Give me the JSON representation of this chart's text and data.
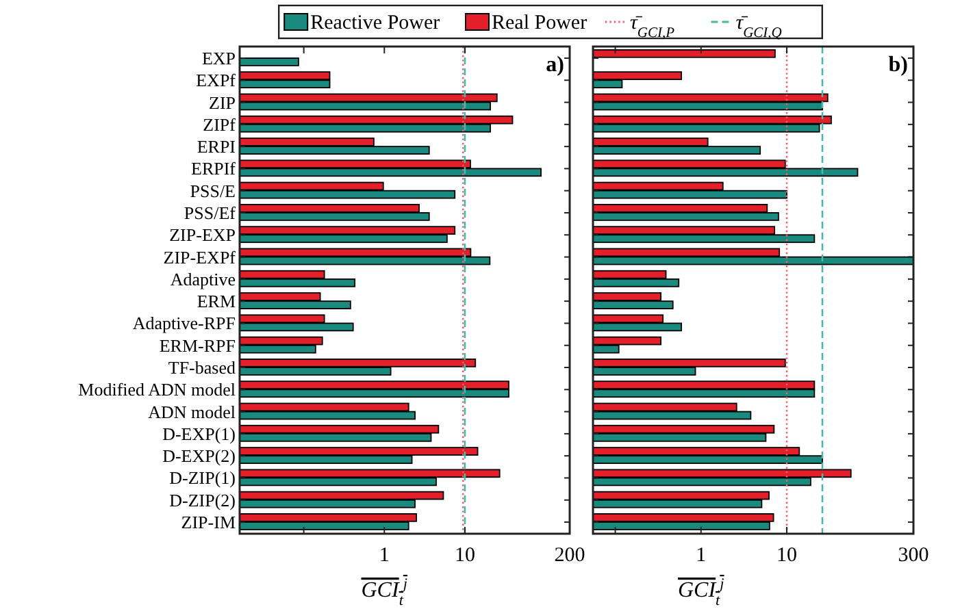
{
  "chart_data": [
    {
      "type": "bar",
      "orientation": "horizontal",
      "log": "x",
      "xlabel": "GCI$_{t}$$^{j}$",
      "legend": "top",
      "annotations": [
        "a)"
      ],
      "categories": [
        "EXP",
        "EXPf",
        "ZIP",
        "ZIPf",
        "ERPI",
        "ERPIf",
        "PSS/E",
        "PSS/Ef",
        "ZIP-EXP",
        "ZIP-EXPf",
        "Adaptive",
        "ERM",
        "Adaptive-RPF",
        "ERM-RPF",
        "TF-based",
        "Modified ADN model",
        "ADN model",
        "D-EXP(1)",
        "D-EXP(2)",
        "D-ZIP(1)",
        "D-ZIP(2)",
        "ZIP-IM"
      ],
      "series": [
        {
          "name": "Reactive Power",
          "color": "#1b8a7e",
          "values": [
            0.086,
            0.21,
            20.7,
            20.7,
            3.6,
            88,
            7.5,
            3.6,
            6.0,
            20.4,
            0.43,
            0.38,
            0.41,
            0.14,
            1.2,
            35,
            2.4,
            3.8,
            2.2,
            4.4,
            2.4,
            2.0
          ]
        },
        {
          "name": "Real Power",
          "color": "#e3202a",
          "values": [
            null,
            0.21,
            25,
            39,
            0.74,
            11.7,
            0.97,
            2.7,
            7.5,
            11.8,
            0.18,
            0.16,
            0.18,
            0.17,
            13.5,
            35,
            2.0,
            4.7,
            14.4,
            27,
            5.4,
            2.5
          ]
        }
      ],
      "xlim": [
        0.016,
        200
      ],
      "xticks": [
        {
          "value": 0.1,
          "label": null
        },
        1,
        10,
        200
      ],
      "ref_lines": [
        {
          "axis": "x",
          "value": 9.5,
          "label": "τ̄$_{GCI,P}$",
          "color": "#f0606a",
          "line_style": "dotted"
        },
        {
          "axis": "x",
          "value": 10,
          "label": "τ̄$_{GCI,Q}$",
          "color": "#4db5aa",
          "line_style": "dashed"
        }
      ]
    },
    {
      "type": "bar",
      "orientation": "horizontal",
      "log": "x",
      "xlabel": "GCI$_{t}$$^{j}$",
      "tick_labels": "x",
      "annotations": [
        "b)"
      ],
      "categories": [
        null,
        null,
        null,
        null,
        null,
        null,
        null,
        null,
        null,
        null,
        null,
        null,
        null,
        null,
        null,
        null,
        null,
        null,
        null,
        null,
        null,
        null
      ],
      "series": [
        {
          "color": "#1b8a7e",
          "values": [
            null,
            0.12,
            26,
            24,
            4.9,
            67,
            10,
            8,
            21,
            300,
            0.55,
            0.47,
            0.59,
            0.11,
            0.86,
            21,
            3.8,
            5.7,
            26,
            19,
            5.1,
            6.3
          ]
        },
        {
          "color": "#e3202a",
          "values": [
            7.3,
            0.59,
            30,
            33,
            1.2,
            9.6,
            1.8,
            5.9,
            7.2,
            8.2,
            0.39,
            0.34,
            0.36,
            0.34,
            9.6,
            21,
            2.6,
            7.1,
            14,
            56,
            6.2,
            7.0
          ]
        }
      ],
      "xlim": [
        0.055,
        300
      ],
      "xticks": [
        {
          "value": 0.1,
          "label": null
        },
        1,
        10,
        300
      ],
      "ref_lines": [
        {
          "axis": "x",
          "value": 10,
          "color": "#f0606a",
          "line_style": "dotted"
        },
        {
          "axis": "x",
          "value": 26,
          "color": "#4db5aa",
          "line_style": "dashed"
        }
      ]
    }
  ]
}
